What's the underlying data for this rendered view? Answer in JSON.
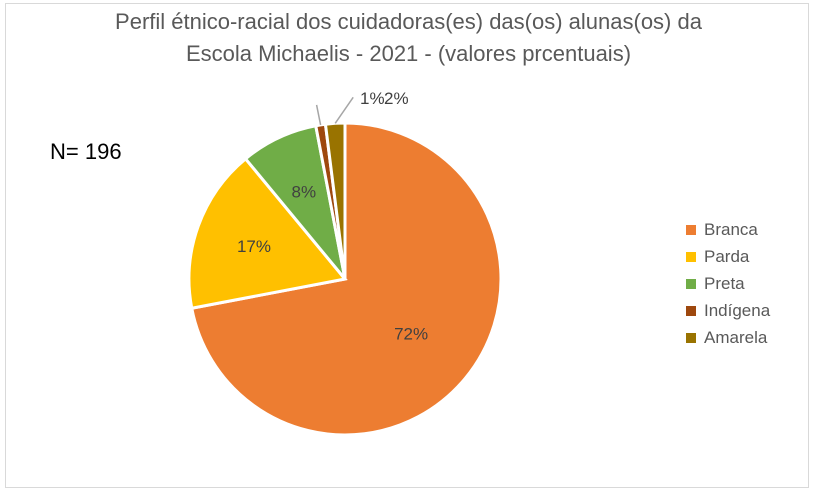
{
  "chart_data": {
    "type": "pie",
    "title_line1": "Perfil étnico-racial dos cuidadoras(es) das(os) alunas(os) da",
    "title_line2": "Escola Michaelis - 2021 -  (valores prcentuais)",
    "annotation": "N= 196",
    "categories": [
      "Branca",
      "Parda",
      "Preta",
      "Indígena",
      "Amarela"
    ],
    "values": [
      72,
      17,
      8,
      1,
      2
    ],
    "labels": [
      "72%",
      "17%",
      "8%",
      "1%",
      "2%"
    ],
    "colors": [
      "#ED7D31",
      "#FFC000",
      "#70AD47",
      "#9E480E",
      "#997300"
    ],
    "legend_position": "right"
  }
}
